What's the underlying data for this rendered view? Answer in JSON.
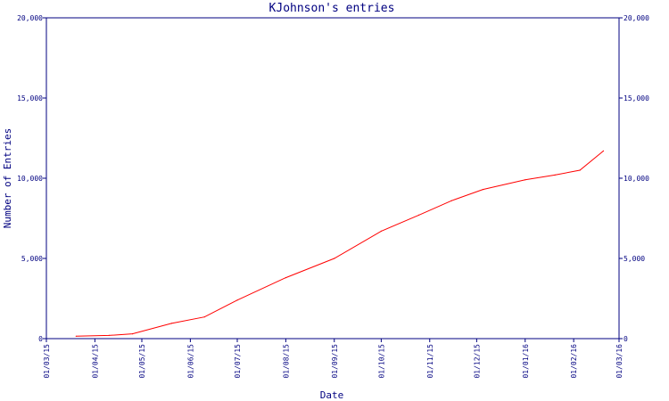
{
  "chart_data": {
    "type": "line",
    "title": "KJohnson's entries",
    "xlabel": "Date",
    "ylabel": "Number of Entries",
    "x_tick_labels": [
      "01/03/15",
      "01/04/15",
      "01/05/15",
      "01/06/15",
      "01/07/15",
      "01/08/15",
      "01/09/15",
      "01/10/15",
      "01/11/15",
      "01/12/15",
      "01/01/16",
      "01/02/16",
      "01/03/16"
    ],
    "y_tick_labels": [
      "0",
      "5,000",
      "10,000",
      "15,000",
      "20,000"
    ],
    "y_ticks": [
      0,
      5000,
      10000,
      15000,
      20000
    ],
    "ylim": [
      0,
      20000
    ],
    "xlim": [
      "2015-03-01",
      "2016-03-01"
    ],
    "grid": false,
    "colors": {
      "axis": "#000080",
      "line": "#ff0000"
    },
    "series": [
      {
        "x": [
          "2015-03-20",
          "2015-04-10",
          "2015-04-25",
          "2015-05-20",
          "2015-06-10",
          "2015-07-01",
          "2015-08-01",
          "2015-09-01",
          "2015-10-01",
          "2015-10-25",
          "2015-11-15",
          "2015-12-05",
          "2016-01-01",
          "2016-01-20",
          "2016-02-05",
          "2016-02-20"
        ],
        "values": [
          150,
          200,
          300,
          950,
          1350,
          2400,
          3800,
          5000,
          6700,
          7700,
          8600,
          9300,
          9900,
          10200,
          10500,
          11700
        ]
      }
    ]
  }
}
